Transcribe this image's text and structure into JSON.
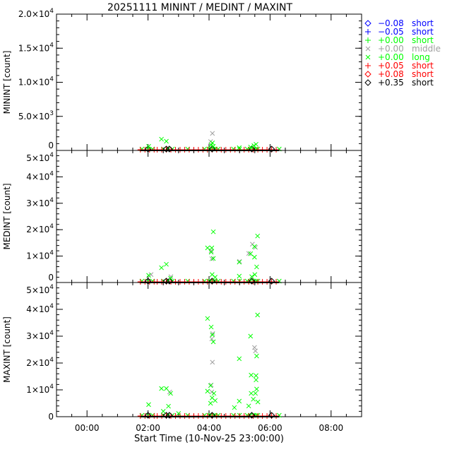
{
  "chart_data": {
    "type": "scatter",
    "title": "20251111 MININT / MEDINT / MAXINT",
    "xlabel": "Start Time (10-Nov-25 23:00:00)",
    "xlim_hours": [
      -1,
      9
    ],
    "x_ticks": [
      {
        "h": 0,
        "label": "00:00"
      },
      {
        "h": 2,
        "label": "02:00"
      },
      {
        "h": 4,
        "label": "04:00"
      },
      {
        "h": 6,
        "label": "06:00"
      },
      {
        "h": 8,
        "label": "08:00"
      }
    ],
    "legend": {
      "placement": "right",
      "entries": [
        {
          "symbol": "diamond",
          "color": "#0000ff",
          "value": "−0.08",
          "label": "short"
        },
        {
          "symbol": "plus",
          "color": "#0000ff",
          "value": "−0.05",
          "label": "short"
        },
        {
          "symbol": "plus",
          "color": "#00ff00",
          "value": "+0.00",
          "label": "short"
        },
        {
          "symbol": "x",
          "color": "#a0a0a0",
          "value": "+0.00",
          "label": "middle"
        },
        {
          "symbol": "x",
          "color": "#00ff00",
          "value": "+0.00",
          "label": "long"
        },
        {
          "symbol": "plus",
          "color": "#ff0000",
          "value": "+0.05",
          "label": "short"
        },
        {
          "symbol": "diamond",
          "color": "#ff0000",
          "value": "+0.08",
          "label": "short"
        },
        {
          "symbol": "diamond",
          "color": "#000000",
          "value": "+0.35",
          "label": "short"
        }
      ]
    },
    "baseline": {
      "red_plus": [
        1.75,
        1.9,
        2.05,
        2.2,
        2.3,
        2.45,
        2.6,
        2.75,
        2.9,
        3.05,
        3.2,
        3.35,
        3.5,
        3.65,
        3.8,
        3.95,
        4.1,
        4.25,
        4.4,
        4.55,
        4.7,
        4.85,
        5.0,
        5.15,
        5.3,
        5.45,
        5.6,
        5.75,
        5.9,
        6.05,
        6.2
      ],
      "green_x": [
        1.8,
        2.0,
        2.15,
        2.5,
        2.65,
        2.8,
        3.3,
        3.85,
        4.0,
        4.05,
        4.15,
        4.2,
        4.3,
        4.8,
        5.0,
        5.25,
        5.35,
        5.45,
        5.55,
        5.6,
        6.3
      ],
      "black_diamond": [
        2.0,
        2.6,
        2.7,
        4.1,
        5.4,
        6.05
      ]
    },
    "panels": [
      {
        "ylabel": "MININT [count]",
        "ylim": [
          0,
          20000
        ],
        "y_ticks": [
          {
            "v": 0,
            "m": "0",
            "e": ""
          },
          {
            "v": 5000,
            "m": "5.0×10",
            "e": "3"
          },
          {
            "v": 10000,
            "m": "1.0×10",
            "e": "4"
          },
          {
            "v": 15000,
            "m": "1.5×10",
            "e": "4"
          },
          {
            "v": 20000,
            "m": "2.0×10",
            "e": "4"
          }
        ],
        "minor": 1000,
        "green_x": [
          [
            2.44,
            1650
          ],
          [
            2.6,
            1350
          ],
          [
            2.02,
            600
          ],
          [
            4.11,
            1100
          ],
          [
            4.07,
            800
          ],
          [
            4.14,
            600
          ],
          [
            5.54,
            900
          ],
          [
            5.47,
            700
          ],
          [
            5.36,
            500
          ],
          [
            4.99,
            400
          ]
        ],
        "gray_x": [
          [
            4.11,
            2500
          ],
          [
            4.05,
            1300
          ]
        ]
      },
      {
        "ylabel": "MEDINT [count]",
        "ylim": [
          0,
          50000
        ],
        "y_ticks": [
          {
            "v": 0,
            "m": "0",
            "e": ""
          },
          {
            "v": 10000,
            "m": "1×10",
            "e": "4"
          },
          {
            "v": 20000,
            "m": "2×10",
            "e": "4"
          },
          {
            "v": 30000,
            "m": "3×10",
            "e": "4"
          },
          {
            "v": 40000,
            "m": "4×10",
            "e": "4"
          },
          {
            "v": 50000,
            "m": "5×10",
            "e": "4"
          }
        ],
        "minor": 2000,
        "green_x": [
          [
            4.14,
            19200
          ],
          [
            3.95,
            13100
          ],
          [
            4.09,
            13100
          ],
          [
            4.07,
            11500
          ],
          [
            4.14,
            9100
          ],
          [
            5.59,
            17600
          ],
          [
            5.49,
            13600
          ],
          [
            5.36,
            10900
          ],
          [
            5.49,
            9600
          ],
          [
            4.99,
            7700
          ],
          [
            2.6,
            6900
          ],
          [
            2.44,
            5600
          ],
          [
            2.02,
            2700
          ],
          [
            2.74,
            1600
          ],
          [
            5.56,
            5900
          ],
          [
            4.99,
            2400
          ],
          [
            4.1,
            3000
          ],
          [
            4.2,
            2000
          ],
          [
            5.5,
            3000
          ],
          [
            5.4,
            2200
          ]
        ],
        "gray_x": [
          [
            4.07,
            12000
          ],
          [
            4.09,
            9000
          ],
          [
            5.42,
            14500
          ],
          [
            5.52,
            13300
          ],
          [
            5.3,
            11000
          ],
          [
            2.1,
            3000
          ],
          [
            2.75,
            2200
          ],
          [
            5.0,
            8000
          ]
        ]
      },
      {
        "ylabel": "MAXINT [count]",
        "ylim": [
          0,
          50000
        ],
        "y_ticks": [
          {
            "v": 0,
            "m": "0",
            "e": ""
          },
          {
            "v": 10000,
            "m": "1×10",
            "e": "4"
          },
          {
            "v": 20000,
            "m": "2×10",
            "e": "4"
          },
          {
            "v": 30000,
            "m": "3×10",
            "e": "4"
          },
          {
            "v": 40000,
            "m": "4×10",
            "e": "4"
          },
          {
            "v": 50000,
            "m": "5×10",
            "e": "4"
          }
        ],
        "minor": 2000,
        "green_x": [
          [
            3.95,
            36600
          ],
          [
            4.07,
            33400
          ],
          [
            4.11,
            30500
          ],
          [
            4.14,
            27900
          ],
          [
            5.59,
            37900
          ],
          [
            5.36,
            30000
          ],
          [
            5.56,
            22600
          ],
          [
            4.99,
            21600
          ],
          [
            5.38,
            15500
          ],
          [
            5.54,
            15300
          ],
          [
            5.54,
            13700
          ],
          [
            2.44,
            10500
          ],
          [
            2.6,
            10500
          ],
          [
            2.74,
            8700
          ],
          [
            2.02,
            4500
          ],
          [
            4.05,
            11600
          ],
          [
            3.95,
            9500
          ],
          [
            4.16,
            8700
          ],
          [
            5.56,
            10300
          ],
          [
            5.38,
            8700
          ],
          [
            5.52,
            8700
          ],
          [
            4.99,
            5800
          ],
          [
            4.83,
            3400
          ],
          [
            2.67,
            3900
          ],
          [
            4.1,
            7000
          ],
          [
            4.2,
            6000
          ],
          [
            4.05,
            5000
          ],
          [
            5.45,
            6500
          ],
          [
            5.6,
            5500
          ],
          [
            5.3,
            4000
          ],
          [
            2.5,
            2000
          ],
          [
            3.0,
            1200
          ]
        ],
        "gray_x": [
          [
            4.11,
            20300
          ],
          [
            5.49,
            25800
          ],
          [
            5.52,
            24500
          ],
          [
            4.07,
            11800
          ],
          [
            4.09,
            9200
          ],
          [
            2.71,
            9200
          ],
          [
            4.12,
            31000
          ],
          [
            4.09,
            29000
          ]
        ]
      }
    ]
  }
}
